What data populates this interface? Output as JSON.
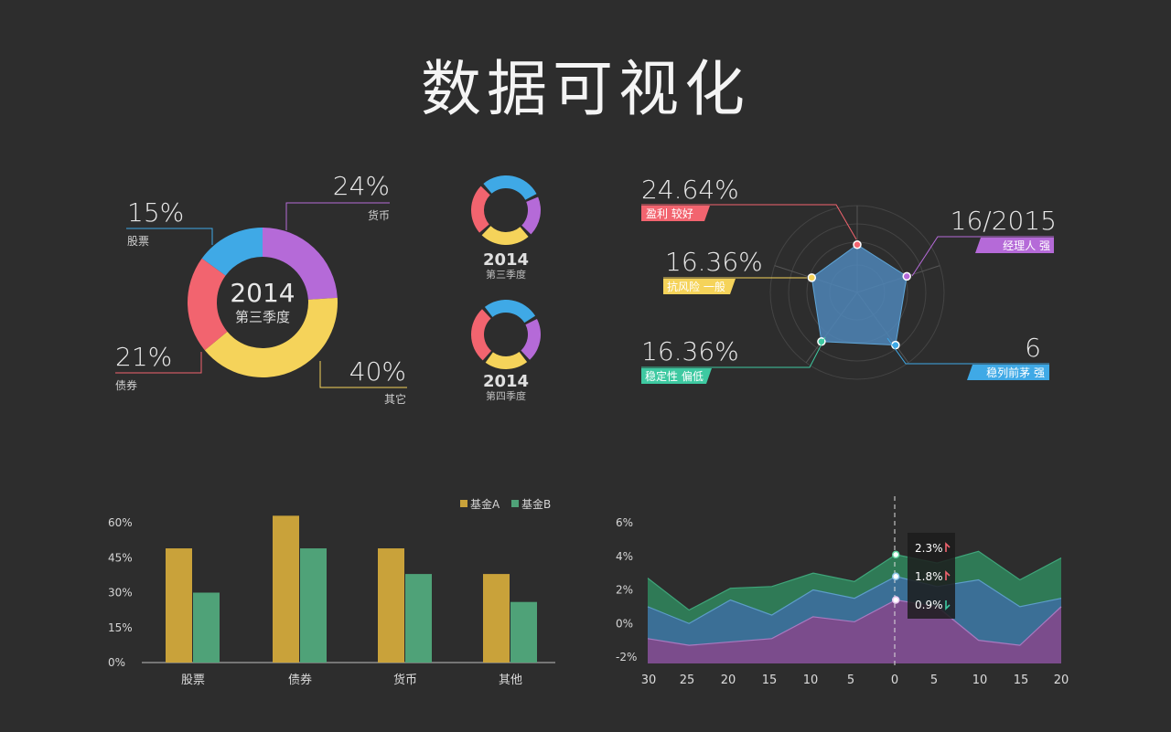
{
  "title": "数据可视化",
  "colors": {
    "blue": "#3fa9e6",
    "purple": "#b56ad8",
    "yellow": "#f5d35a",
    "red": "#f2646f",
    "green": "#3ec9a1",
    "fundA": "#c9a23a",
    "fundB": "#4fa278",
    "areaGreen": "#2f7a56",
    "areaBlue": "#3b6f96",
    "areaPurple": "#7b4c8c"
  },
  "donut_main": {
    "year": "2014",
    "period": "第三季度",
    "segments": [
      {
        "pct": "15%",
        "value": 15,
        "label": "股票",
        "color": "#3fa9e6"
      },
      {
        "pct": "24%",
        "value": 24,
        "label": "货币",
        "color": "#b56ad8"
      },
      {
        "pct": "40%",
        "value": 40,
        "label": "其它",
        "color": "#f5d35a"
      },
      {
        "pct": "21%",
        "value": 21,
        "label": "债券",
        "color": "#f2646f"
      }
    ]
  },
  "donut_small": [
    {
      "year": "2014",
      "period": "第三季度",
      "values": [
        30,
        20,
        25,
        25
      ]
    },
    {
      "year": "2014",
      "period": "第四季度",
      "values": [
        28,
        22,
        22,
        28
      ]
    }
  ],
  "radar": {
    "items": [
      {
        "value": "24.64%",
        "tag": "盈利 较好",
        "color": "#f2646f",
        "score": 0.55
      },
      {
        "value": "16/2015",
        "tag": "经理人 强",
        "color": "#b56ad8",
        "score": 0.6
      },
      {
        "value": "6",
        "tag": "稳列前茅 强",
        "color": "#3fa9e6",
        "score": 0.75
      },
      {
        "value": "16.36%",
        "tag": "稳定性 偏低",
        "color": "#3ec9a1",
        "score": 0.7
      },
      {
        "value": "16.36%",
        "tag": "抗风险 一般",
        "color": "#f5d35a",
        "score": 0.55
      }
    ]
  },
  "chart_data": [
    {
      "type": "pie",
      "title": "2014 第三季度",
      "categories": [
        "股票",
        "货币",
        "其它",
        "债券"
      ],
      "values": [
        15,
        24,
        40,
        21
      ]
    },
    {
      "type": "bar",
      "categories": [
        "股票",
        "债券",
        "货币",
        "其他"
      ],
      "series": [
        {
          "name": "基金A",
          "values": [
            49,
            63,
            49,
            38
          ]
        },
        {
          "name": "基金B",
          "values": [
            30,
            49,
            38,
            26
          ]
        }
      ],
      "ylim": [
        0,
        60
      ],
      "yticks": [
        "60%",
        "45%",
        "30%",
        "15%",
        "0%"
      ],
      "legend": "top-right"
    },
    {
      "type": "area",
      "x": [
        "30",
        "25",
        "20",
        "15",
        "10",
        "5",
        "0",
        "5",
        "10",
        "15",
        "20"
      ],
      "series": [
        {
          "values": [
            2.7,
            0.8,
            2.1,
            2.2,
            3.0,
            2.5,
            4.1,
            3.6,
            4.3,
            2.6,
            3.9
          ]
        },
        {
          "values": [
            1.0,
            0.0,
            1.4,
            0.5,
            2.0,
            1.5,
            2.8,
            2.2,
            2.6,
            1.0,
            1.5
          ]
        },
        {
          "values": [
            -0.9,
            -1.3,
            -1.1,
            -0.9,
            0.4,
            0.1,
            1.4,
            1.0,
            -1.0,
            -1.3,
            1.0
          ]
        }
      ],
      "ylim": [
        -2,
        6
      ],
      "yticks": [
        "6%",
        "4%",
        "2%",
        "0%",
        "-2%"
      ],
      "tooltip": [
        {
          "text": "2.3%",
          "dir": "up",
          "color": "#f2646f"
        },
        {
          "text": "1.8%",
          "dir": "up",
          "color": "#f2646f"
        },
        {
          "text": "0.9%",
          "dir": "down",
          "color": "#3ec9a1"
        }
      ]
    }
  ]
}
